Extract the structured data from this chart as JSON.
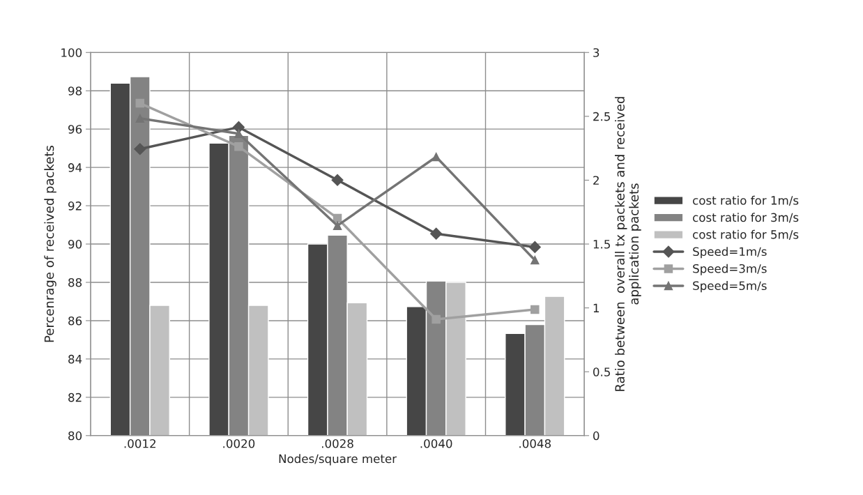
{
  "chart_data": {
    "type": "bar",
    "xlabel": "Nodes/square meter",
    "ylabel": "Percenrage of received packets",
    "y2label": "Ratio between  overall tx packets and received\napplication packets",
    "categories": [
      ".0012",
      ".0020",
      ".0028",
      ".0040",
      ".0048"
    ],
    "series": [
      {
        "name": "cost ratio for 1m/s",
        "axis": "y2",
        "color": "#464646",
        "values": [
          2.76,
          2.29,
          1.5,
          1.01,
          0.8
        ]
      },
      {
        "name": "cost ratio for 3m/s",
        "axis": "y2",
        "color": "#838383",
        "values": [
          2.81,
          2.35,
          1.57,
          1.21,
          0.87
        ]
      },
      {
        "name": "cost ratio for 5m/s",
        "axis": "y2",
        "color": "#c0c0c0",
        "values": [
          1.02,
          1.02,
          1.04,
          1.2,
          1.09
        ]
      },
      {
        "name": "Speed=1m/s",
        "type": "line",
        "axis": "y",
        "marker": "diamond",
        "color": "#555555",
        "values": [
          94.96,
          96.1,
          93.34,
          90.54,
          89.84
        ]
      },
      {
        "name": "Speed=3m/s",
        "type": "line",
        "axis": "y",
        "marker": "square",
        "color": "#a0a0a0",
        "values": [
          97.35,
          95.09,
          91.35,
          86.07,
          86.58
        ]
      },
      {
        "name": "Speed=5m/s",
        "type": "line",
        "axis": "y",
        "marker": "triangle",
        "color": "#747474",
        "values": [
          96.56,
          95.76,
          90.96,
          94.55,
          89.16
        ]
      }
    ],
    "ylim": [
      80,
      100
    ],
    "yticks": [
      80,
      82,
      84,
      86,
      88,
      90,
      92,
      94,
      96,
      98,
      100
    ],
    "y2lim": [
      0,
      3
    ],
    "y2ticks": [
      0,
      0.5,
      1,
      1.5,
      2,
      2.5,
      3
    ],
    "grid": true,
    "legend": "right"
  }
}
